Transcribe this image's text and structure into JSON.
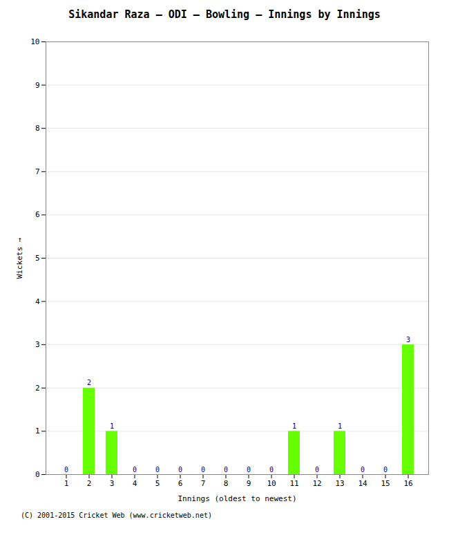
{
  "chart_data": {
    "type": "bar",
    "title": "Sikandar Raza – ODI – Bowling – Innings by Innings",
    "x_label": "Innings (oldest to newest)",
    "y_label": "Wickets",
    "categories": [
      "1",
      "2",
      "3",
      "4",
      "5",
      "6",
      "7",
      "8",
      "9",
      "10",
      "11",
      "12",
      "13",
      "14",
      "15",
      "16"
    ],
    "values": [
      0,
      2,
      1,
      0,
      0,
      0,
      0,
      0,
      0,
      0,
      1,
      0,
      1,
      0,
      0,
      3
    ],
    "color": "#66ff00",
    "ylim": [
      0,
      10
    ],
    "yticks": [
      0,
      1,
      2,
      3,
      4,
      5,
      6,
      7,
      8,
      9,
      10
    ],
    "grid": true,
    "data_labels": true,
    "annotations": [
      "(C) 2001-2015 Cricket Web (www.cricketweb.net)"
    ]
  }
}
